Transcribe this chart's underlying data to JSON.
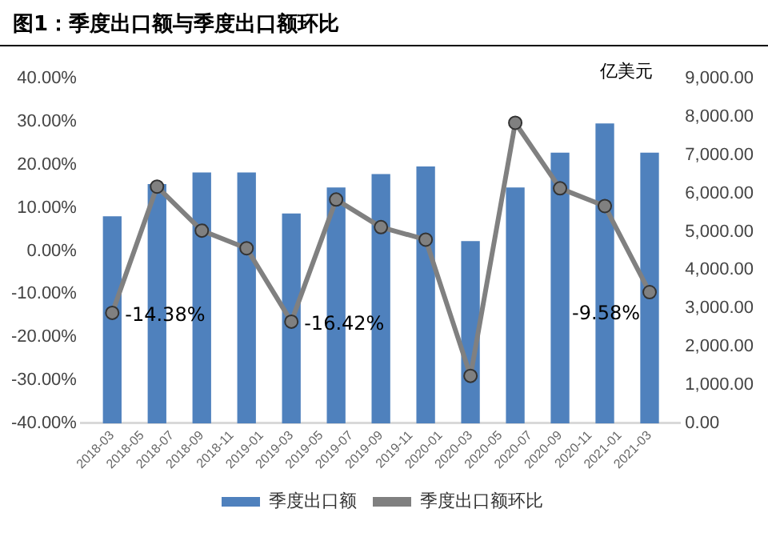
{
  "chart_data": {
    "type": "bar",
    "title": "图1：季度出口额与季度出口额环比",
    "y2label": "亿美元",
    "x": [
      "2018-03",
      "2018-06",
      "2018-09",
      "2018-12",
      "2019-03",
      "2019-06",
      "2019-09",
      "2019-12",
      "2020-03",
      "2020-06",
      "2020-09",
      "2020-12",
      "2021-03"
    ],
    "xlim": [
      "2018-02",
      "2021-04"
    ],
    "xticks": [
      "2018-03",
      "2018-05",
      "2018-07",
      "2018-09",
      "2018-11",
      "2019-01",
      "2019-03",
      "2019-05",
      "2019-07",
      "2019-09",
      "2019-11",
      "2020-01",
      "2020-03",
      "2020-05",
      "2020-07",
      "2020-09",
      "2020-11",
      "2021-01",
      "2021-03"
    ],
    "series": [
      {
        "name": "季度出口额",
        "axis": "y2",
        "color": "#4f81bd",
        "values": [
          5390,
          6230,
          6530,
          6530,
          5460,
          6140,
          6490,
          6690,
          4740,
          6140,
          7050,
          7810,
          7050
        ]
      },
      {
        "name": "季度出口额环比",
        "type": "line",
        "color": "#808080",
        "marker": "circle",
        "values": [
          -14.38,
          14.9,
          4.7,
          0.6,
          -16.42,
          11.9,
          5.5,
          2.6,
          -29.0,
          29.7,
          14.5,
          10.4,
          -9.58
        ],
        "value_labels": [
          "-14.38%",
          null,
          null,
          null,
          "-16.42%",
          null,
          null,
          null,
          null,
          null,
          null,
          null,
          "-9.58%"
        ]
      }
    ],
    "ylim": [
      -40,
      40
    ],
    "yticks": [
      {
        "value": -40,
        "label": "-40.00%"
      },
      {
        "value": -30,
        "label": "-30.00%"
      },
      {
        "value": -20,
        "label": "-20.00%"
      },
      {
        "value": -10,
        "label": "-10.00%"
      },
      {
        "value": 0,
        "label": "0.00%"
      },
      {
        "value": 10,
        "label": "10.00%"
      },
      {
        "value": 20,
        "label": "20.00%"
      },
      {
        "value": 30,
        "label": "30.00%"
      },
      {
        "value": 40,
        "label": "40.00%"
      }
    ],
    "y2lim": [
      0,
      9000
    ],
    "y2ticks": [
      {
        "value": 0,
        "label": "0.00"
      },
      {
        "value": 1000,
        "label": "1,000.00"
      },
      {
        "value": 2000,
        "label": "2,000.00"
      },
      {
        "value": 3000,
        "label": "3,000.00"
      },
      {
        "value": 4000,
        "label": "4,000.00"
      },
      {
        "value": 5000,
        "label": "5,000.00"
      },
      {
        "value": 6000,
        "label": "6,000.00"
      },
      {
        "value": 7000,
        "label": "7,000.00"
      },
      {
        "value": 8000,
        "label": "8,000.00"
      },
      {
        "value": 9000,
        "label": "9,000.00"
      }
    ],
    "legend": "bottom",
    "grid": false
  }
}
